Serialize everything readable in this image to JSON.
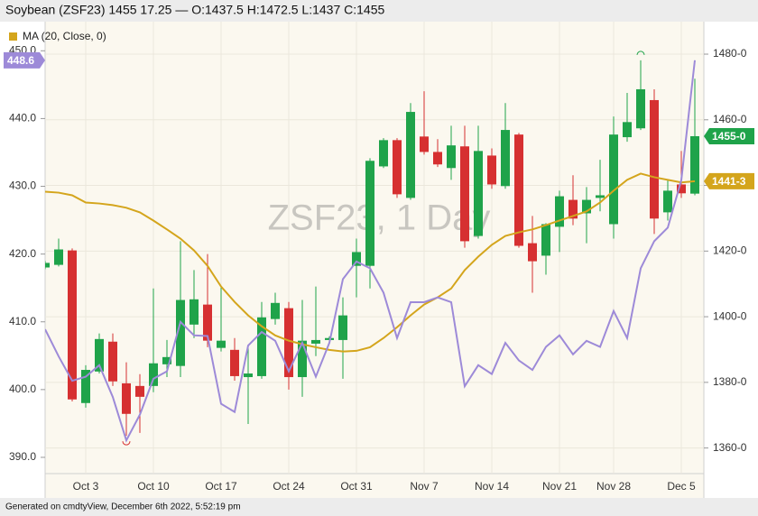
{
  "chart_data": {
    "type": "candlestick",
    "title": "Soybean (ZSF23) 1455 17.25 — O:1437.5 H:1472.5 L:1437 C:1455",
    "watermark": "ZSF23, 1 Day",
    "footer": "Generated on cmdtyView, December 6th 2022, 5:52:19 pm",
    "categories": [
      null,
      null,
      null,
      "Oct 3",
      null,
      null,
      null,
      null,
      "Oct 10",
      null,
      null,
      null,
      null,
      "Oct 17",
      null,
      null,
      null,
      null,
      "Oct 24",
      null,
      null,
      null,
      null,
      "Oct 31",
      null,
      null,
      null,
      null,
      "Nov 7",
      null,
      null,
      null,
      null,
      "Nov 14",
      null,
      null,
      null,
      null,
      "Nov 21",
      null,
      null,
      null,
      "Nov 28",
      null,
      null,
      null,
      null,
      "Dec 5",
      null
    ],
    "open": [
      1415.0,
      1415.8,
      1420.2,
      1373.7,
      1383.3,
      1392.4,
      1379.7,
      1378.9,
      1378.9,
      1385.5,
      1385.0,
      1397.6,
      1403.7,
      1390.5,
      1389.9,
      1381.6,
      1381.9,
      1399.3,
      1402.6,
      1381.6,
      1391.8,
      1392.9,
      1392.9,
      1415.5,
      1415.5,
      1445.8,
      1453.8,
      1436.2,
      1454.9,
      1450.2,
      1445.3,
      1451.9,
      1424.6,
      1449.1,
      1439.8,
      1455.5,
      1422.4,
      1418.6,
      1427.4,
      1435.6,
      1431.5,
      1436.2,
      1428.2,
      1454.7,
      1457.4,
      1466.0,
      1431.8,
      1440.3,
      1437.5
    ],
    "high": [
      1417.0,
      1423.8,
      1420.8,
      1385.2,
      1394.9,
      1394.9,
      1386.1,
      1382.5,
      1408.6,
      1392.9,
      1423.0,
      1414.2,
      1419.1,
      1408.9,
      1393.5,
      1390.5,
      1404.5,
      1407.3,
      1404.5,
      1405.1,
      1409.2,
      1394.0,
      1405.9,
      1423.8,
      1448.3,
      1454.4,
      1454.4,
      1465.1,
      1468.7,
      1454.1,
      1458.2,
      1458.2,
      1458.2,
      1451.3,
      1465.1,
      1456.0,
      1430.7,
      1428.5,
      1438.4,
      1443.1,
      1439.5,
      1447.8,
      1461.0,
      1468.2,
      1478.1,
      1469.3,
      1441.7,
      1450.5,
      1472.5
    ],
    "low": [
      1414.5,
      1415.3,
      1374.2,
      1372.3,
      1382.7,
      1378.9,
      1363.7,
      1364.6,
      1377.0,
      1381.6,
      1381.6,
      1393.5,
      1390.7,
      1389.4,
      1380.5,
      1367.3,
      1381.1,
      1397.6,
      1377.8,
      1375.6,
      1388.0,
      1392.5,
      1381.1,
      1405.9,
      1408.6,
      1445.3,
      1436.2,
      1435.6,
      1449.4,
      1445.6,
      1441.7,
      1421.0,
      1423.8,
      1439.0,
      1439.0,
      1421.0,
      1407.3,
      1412.8,
      1419.7,
      1427.9,
      1422.4,
      1432.1,
      1423.8,
      1453.3,
      1456.9,
      1425.2,
      1429.3,
      1436.2,
      1437
    ],
    "close": [
      1416.4,
      1420.5,
      1374.8,
      1383.8,
      1393.2,
      1380.3,
      1370.4,
      1375.6,
      1385.8,
      1387.7,
      1405.1,
      1405.3,
      1392.7,
      1392.7,
      1381.9,
      1382.7,
      1399.8,
      1404.2,
      1381.6,
      1392.7,
      1392.9,
      1393.5,
      1400.4,
      1419.7,
      1447.5,
      1453.8,
      1437.3,
      1462.4,
      1450.2,
      1446.4,
      1452.2,
      1423.0,
      1450.5,
      1440.3,
      1456.9,
      1421.6,
      1416.9,
      1428.2,
      1436.7,
      1429.9,
      1435.6,
      1437.0,
      1455.5,
      1459.3,
      1469.3,
      1429.9,
      1438.4,
      1437.6,
      1455
    ],
    "up_color": "#1fa34a",
    "down_color": "#d63031",
    "last_tag": {
      "value": 1455,
      "label": "1455-0"
    },
    "series": [
      {
        "name": "MA (20, Close, 0)",
        "color": "#d4a51c",
        "values": [
          1438.1,
          1437.8,
          1437.0,
          1434.8,
          1434.5,
          1434.0,
          1433.2,
          1431.8,
          1429.3,
          1426.6,
          1423.8,
          1420.2,
          1415.5,
          1409.2,
          1404.5,
          1400.4,
          1397.1,
          1394.3,
          1392.7,
          1391.6,
          1390.7,
          1389.9,
          1389.4,
          1389.6,
          1390.7,
          1393.5,
          1396.8,
          1400.4,
          1403.7,
          1405.9,
          1408.6,
          1414.2,
          1418.3,
          1421.9,
          1424.6,
          1425.7,
          1426.6,
          1427.9,
          1429.3,
          1430.7,
          1432.1,
          1434.8,
          1438.4,
          1441.7,
          1443.6,
          1442.5,
          1441.7,
          1440.9,
          1441.3
        ],
        "tag": {
          "value": 1441.3,
          "label": "1441-3"
        }
      },
      {
        "color": "#9d8ad8",
        "axis": "y2",
        "values": [
          408.9,
          404.9,
          401.3,
          401.9,
          403.6,
          398.9,
          392.5,
          396.3,
          401.6,
          402.7,
          410.0,
          408.0,
          407.9,
          397.9,
          396.7,
          406.5,
          408.5,
          407.2,
          402.7,
          406.9,
          401.9,
          406.9,
          416.3,
          418.9,
          417.9,
          414.3,
          407.6,
          412.9,
          412.9,
          413.6,
          412.9,
          400.5,
          403.6,
          402.3,
          406.9,
          404.3,
          402.9,
          406.3,
          408.0,
          405.2,
          407.2,
          406.3,
          411.6,
          407.6,
          417.9,
          421.9,
          423.9,
          430.9,
          448.6
        ],
        "tag": {
          "value": 448.6,
          "label": "448.6"
        }
      }
    ],
    "ylim": [
      1352.2,
      1489.9
    ],
    "yticks": [
      {
        "value": 1360,
        "label": "1360-0"
      },
      {
        "value": 1380,
        "label": "1380-0"
      },
      {
        "value": 1400,
        "label": "1400-0"
      },
      {
        "value": 1420,
        "label": "1420-0"
      },
      {
        "value": 1440,
        "label": "1440-0"
      },
      {
        "value": 1460,
        "label": "1460-0"
      },
      {
        "value": 1480,
        "label": "1480-0"
      }
    ],
    "y2lim": [
      387.6,
      454.3
    ],
    "y2ticks": [
      {
        "value": 390,
        "label": "390.0"
      },
      {
        "value": 400,
        "label": "400.0"
      },
      {
        "value": 410,
        "label": "410.0"
      },
      {
        "value": 420,
        "label": "420.0"
      },
      {
        "value": 430,
        "label": "430.0"
      },
      {
        "value": 440,
        "label": "440.0"
      },
      {
        "value": 450,
        "label": "450.0"
      }
    ],
    "grid": true
  }
}
